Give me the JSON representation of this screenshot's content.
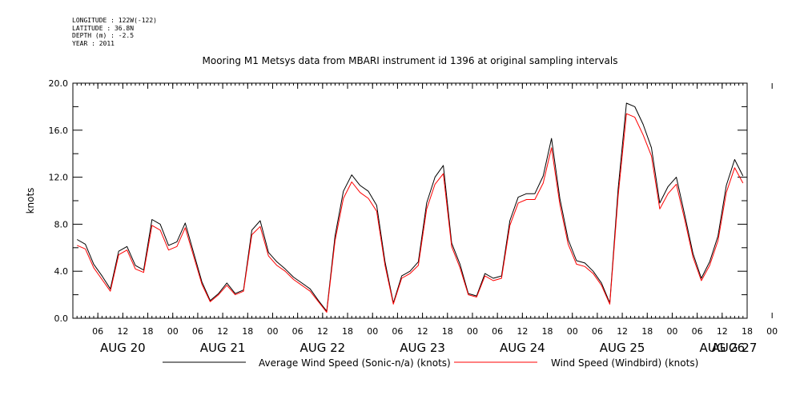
{
  "header": {
    "meta_lines": [
      "LONGITUDE : 122W(-122)",
      "LATITUDE : 36.8N",
      "DEPTH (m) : -2.5",
      "YEAR : 2011"
    ]
  },
  "chart_data": {
    "type": "line",
    "title": "Mooring M1 Metsys data from MBARI instrument id 1396 at original sampling intervals",
    "ylabel": "knots",
    "xlabel": "",
    "ylim": [
      0,
      20
    ],
    "yticks": [
      "0.0",
      "4.0",
      "8.0",
      "12.0",
      "16.0",
      "20.0"
    ],
    "x_hour_range": [
      -6,
      156
    ],
    "hour_tick_labels": [
      "06",
      "12",
      "18",
      "00",
      "06",
      "12",
      "18",
      "00",
      "06",
      "12",
      "18",
      "00",
      "06",
      "12",
      "18",
      "00",
      "06",
      "12",
      "18",
      "00",
      "06",
      "12",
      "18",
      "00",
      "06",
      "12",
      "18",
      "00"
    ],
    "day_labels": [
      "AUG 20",
      "AUG 21",
      "AUG 22",
      "AUG 23",
      "AUG 24",
      "AUG 25",
      "AUG 26",
      "AUG 27"
    ],
    "grid": false,
    "legend_position": "bottom",
    "series": [
      {
        "name": "Average Wind Speed (Sonic-n/a) (knots)",
        "color": "#000000",
        "x": [
          -5,
          -3,
          -1,
          1,
          3,
          5,
          7,
          9,
          11,
          13,
          15,
          17,
          19,
          21,
          23,
          25,
          27,
          29,
          31,
          33,
          35,
          37,
          39,
          41,
          43,
          45,
          47,
          49,
          51,
          53,
          55,
          57,
          59,
          61,
          63,
          65,
          67,
          69,
          71,
          73,
          75,
          77,
          79,
          81,
          83,
          85,
          87,
          89,
          91,
          93,
          95,
          97,
          99,
          101,
          103,
          105,
          107,
          109,
          111,
          113,
          115,
          117,
          119,
          121,
          123,
          125,
          127,
          129,
          131,
          133,
          135,
          137,
          139,
          141,
          143,
          145,
          147,
          149,
          151,
          153,
          155
        ],
        "y": [
          6.7,
          6.3,
          4.6,
          3.6,
          2.5,
          5.7,
          6.1,
          4.5,
          4.1,
          8.4,
          8.0,
          6.2,
          6.5,
          8.1,
          5.6,
          3.1,
          1.5,
          2.1,
          3.0,
          2.1,
          2.4,
          7.5,
          8.3,
          5.6,
          4.8,
          4.2,
          3.5,
          3.0,
          2.5,
          1.5,
          0.6,
          7.0,
          10.8,
          12.2,
          11.3,
          10.8,
          9.6,
          4.8,
          1.3,
          3.6,
          4.0,
          4.8,
          9.8,
          12.0,
          13.0,
          6.4,
          4.6,
          2.1,
          1.9,
          3.8,
          3.4,
          3.6,
          8.3,
          10.3,
          10.6,
          10.6,
          12.1,
          15.3,
          10.2,
          6.7,
          4.9,
          4.7,
          4.0,
          3.0,
          1.3,
          11.0,
          18.3,
          18.0,
          16.5,
          14.5,
          9.8,
          11.2,
          12.0,
          8.8,
          5.5,
          3.4,
          4.8,
          7.0,
          11.3,
          13.5,
          12.1
        ]
      },
      {
        "name": "Wind Speed (Windbird) (knots)",
        "color": "#ff0000",
        "x": [
          -5,
          -3,
          -1,
          1,
          3,
          5,
          7,
          9,
          11,
          13,
          15,
          17,
          19,
          21,
          23,
          25,
          27,
          29,
          31,
          33,
          35,
          37,
          39,
          41,
          43,
          45,
          47,
          49,
          51,
          53,
          55,
          57,
          59,
          61,
          63,
          65,
          67,
          69,
          71,
          73,
          75,
          77,
          79,
          81,
          83,
          85,
          87,
          89,
          91,
          93,
          95,
          97,
          99,
          101,
          103,
          105,
          107,
          109,
          111,
          113,
          115,
          117,
          119,
          121,
          123,
          125,
          127,
          129,
          131,
          133,
          135,
          137,
          139,
          141,
          143,
          145,
          147,
          149,
          151,
          153,
          155
        ],
        "y": [
          6.2,
          5.9,
          4.3,
          3.3,
          2.3,
          5.4,
          5.8,
          4.2,
          3.9,
          7.9,
          7.5,
          5.8,
          6.1,
          7.7,
          5.3,
          2.9,
          1.4,
          2.0,
          2.8,
          2.0,
          2.3,
          7.1,
          7.8,
          5.3,
          4.5,
          4.0,
          3.3,
          2.8,
          2.3,
          1.4,
          0.5,
          6.6,
          10.2,
          11.6,
          10.7,
          10.2,
          9.1,
          4.5,
          1.2,
          3.4,
          3.8,
          4.5,
          9.3,
          11.4,
          12.3,
          6.1,
          4.3,
          2.0,
          1.8,
          3.6,
          3.2,
          3.4,
          7.9,
          9.8,
          10.1,
          10.1,
          11.5,
          14.5,
          9.7,
          6.3,
          4.6,
          4.4,
          3.8,
          2.8,
          1.2,
          10.4,
          17.4,
          17.1,
          15.6,
          13.8,
          9.3,
          10.6,
          11.4,
          8.4,
          5.2,
          3.2,
          4.5,
          6.6,
          10.7,
          12.8,
          11.5
        ]
      }
    ]
  }
}
